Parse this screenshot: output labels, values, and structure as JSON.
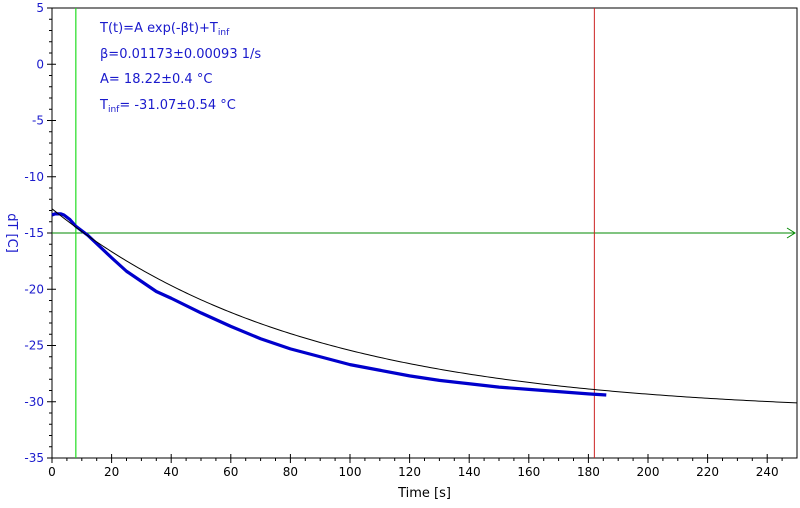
{
  "chart_data": {
    "type": "line",
    "xlabel": "Time [s]",
    "ylabel": "dT [C]",
    "xlim": [
      0,
      250
    ],
    "ylim": [
      -35,
      5
    ],
    "x_ticks": [
      0,
      20,
      40,
      60,
      80,
      100,
      120,
      140,
      160,
      180,
      200,
      220,
      240
    ],
    "y_ticks": [
      5,
      0,
      -5,
      -10,
      -15,
      -20,
      -25,
      -30,
      -35
    ],
    "grid": false,
    "annotations": {
      "equation_main": "T(t)=A exp(-βt)+T",
      "equation_sub": "inf",
      "beta": "β=0.01173±0.00093 1/s",
      "amp": "A= 18.22±0.4 °C",
      "tinf_main": "T",
      "tinf_sub": "inf",
      "tinf_val": "= -31.07±0.54 °C"
    },
    "fit": {
      "A": 18.22,
      "beta": 0.01173,
      "T_inf": -31.07,
      "x_range": [
        0,
        250
      ]
    },
    "series": [
      {
        "x": [
          0,
          1,
          2,
          3,
          4,
          5,
          6,
          7,
          8,
          10,
          12,
          14,
          16,
          18,
          20,
          25,
          30,
          35,
          40,
          50,
          60,
          70,
          80,
          90,
          100,
          110,
          120,
          130,
          140,
          150,
          160,
          170,
          180,
          186
        ],
        "y": [
          -13.4,
          -13.3,
          -13.3,
          -13.3,
          -13.4,
          -13.6,
          -13.8,
          -14.1,
          -14.4,
          -14.8,
          -15.2,
          -15.7,
          -16.2,
          -16.7,
          -17.2,
          -18.4,
          -19.3,
          -20.2,
          -20.8,
          -22.1,
          -23.3,
          -24.4,
          -25.3,
          -26.0,
          -26.7,
          -27.2,
          -27.7,
          -28.1,
          -28.4,
          -28.7,
          -28.9,
          -29.1,
          -29.3,
          -29.4
        ]
      }
    ],
    "vertical_markers": [
      8,
      182
    ],
    "horizontal_marker": -15,
    "colors": {
      "axis_text": "#1a1acc",
      "data": "#0000cc",
      "fit": "#000000",
      "left_marker": "#22dd22",
      "right_marker": "#cc2222",
      "horizontal_marker": "#008800"
    }
  }
}
